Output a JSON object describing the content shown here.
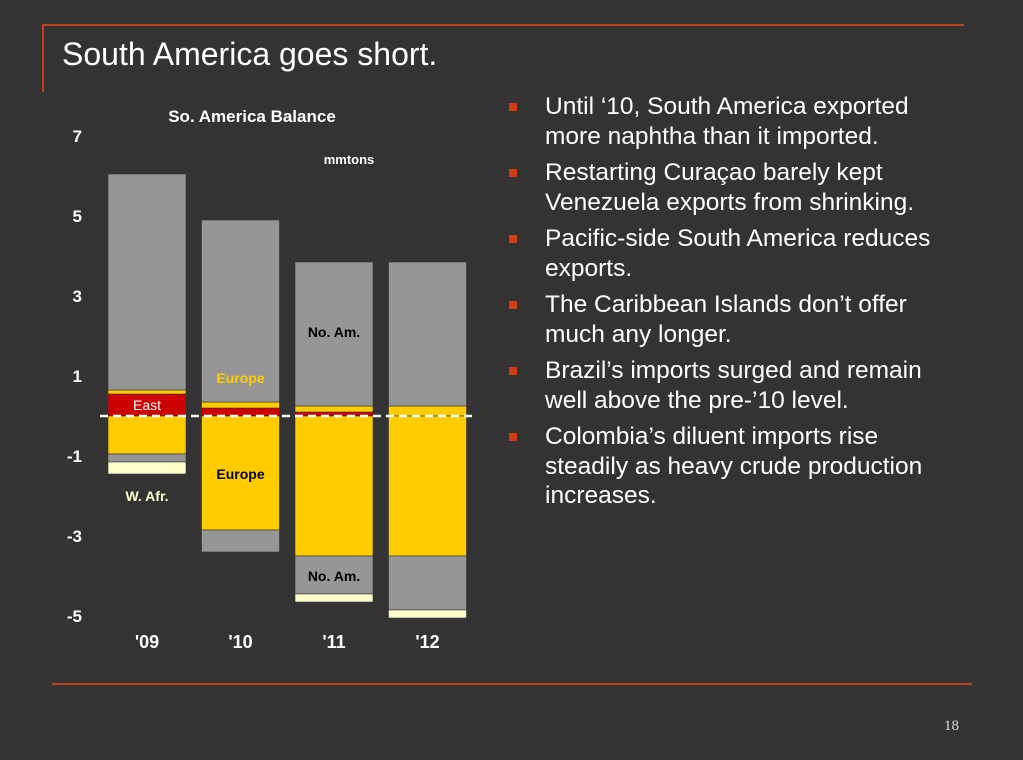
{
  "slide": {
    "title": "South America goes short.",
    "page_number": "18",
    "accent_color": "#c0401a",
    "background": "#333333"
  },
  "bullets": [
    "Until ‘10, South America exported more naphtha than it imported.",
    "Restarting Curaçao barely kept Venezuela exports from shrinking.",
    "Pacific-side South America reduces exports.",
    "The Caribbean Islands don’t offer much any longer.",
    "Brazil’s imports surged and remain well above the pre-’10 level.",
    "Colombia’s diluent imports rise steadily as heavy crude production increases."
  ],
  "chart_data": {
    "type": "bar",
    "stacked": true,
    "title": "So. America Balance",
    "unit_label": "mmtons",
    "categories": [
      "'09",
      "'10",
      "'11",
      "'12"
    ],
    "y_ticks": [
      "7",
      "5",
      "3",
      "1",
      "-1",
      "-3",
      "-5"
    ],
    "ylim": [
      -5,
      7
    ],
    "baseline_value": 0,
    "baseline_style": "dashed",
    "colors": {
      "grey": "#969696",
      "yellow": "#ffcc00",
      "red": "#cc0000",
      "cream": "#ffffcc"
    },
    "positive_stacks": [
      [
        {
          "color": "red",
          "value": 0.55
        },
        {
          "color": "yellow",
          "value": 0.1
        },
        {
          "color": "grey",
          "value": 5.4
        }
      ],
      [
        {
          "color": "red",
          "value": 0.2
        },
        {
          "color": "yellow",
          "value": 0.15
        },
        {
          "color": "grey",
          "value": 4.55
        }
      ],
      [
        {
          "color": "red",
          "value": 0.1
        },
        {
          "color": "yellow",
          "value": 0.15
        },
        {
          "color": "grey",
          "value": 3.6
        }
      ],
      [
        {
          "color": "yellow",
          "value": 0.25
        },
        {
          "color": "grey",
          "value": 3.6
        }
      ]
    ],
    "negative_stacks": [
      [
        {
          "color": "yellow",
          "value": -0.95
        },
        {
          "color": "grey",
          "value": -0.2
        },
        {
          "color": "cream",
          "value": -0.3
        }
      ],
      [
        {
          "color": "yellow",
          "value": -2.85
        },
        {
          "color": "grey",
          "value": -0.55
        }
      ],
      [
        {
          "color": "yellow",
          "value": -3.5
        },
        {
          "color": "grey",
          "value": -0.95
        },
        {
          "color": "cream",
          "value": -0.2
        }
      ],
      [
        {
          "color": "yellow",
          "value": -3.5
        },
        {
          "color": "grey",
          "value": -1.35
        },
        {
          "color": "cream",
          "value": -0.2
        }
      ]
    ],
    "annotations": [
      {
        "text": "East",
        "category": 0,
        "value": 0.27,
        "color": "#ffffff",
        "bold": false
      },
      {
        "text": "W. Afr.",
        "category": 0,
        "value": -2.0,
        "color": "#ffffcc",
        "bold": true
      },
      {
        "text": "Europe",
        "category": 1,
        "value": 0.95,
        "color": "#ffcc00",
        "bold": true
      },
      {
        "text": "Europe",
        "category": 1,
        "value": -1.45,
        "color": "#000000",
        "bold": true
      },
      {
        "text": "No. Am.",
        "category": 2,
        "value": 2.1,
        "color": "#000000",
        "bold": true
      },
      {
        "text": "No. Am.",
        "category": 2,
        "value": -4.0,
        "color": "#000000",
        "bold": true
      }
    ]
  }
}
